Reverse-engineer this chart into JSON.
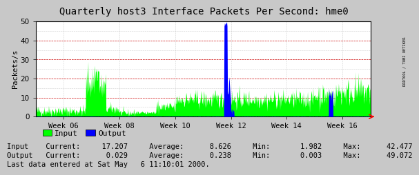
{
  "title": "Quarterly host3 Interface Packets Per Second: hme0",
  "ylabel": "Packets/s",
  "bg_color": "#c8c8c8",
  "plot_bg_color": "#ffffff",
  "ylim": [
    0,
    50
  ],
  "yticks": [
    0,
    10,
    20,
    30,
    40,
    50
  ],
  "week_labels": [
    "Week 06",
    "Week 08",
    "Week 10",
    "Week 12",
    "Week 14",
    "Week 16"
  ],
  "input_color": "#00ff00",
  "output_color": "#0000ff",
  "arrow_color": "#ff0000",
  "legend_input": "Input",
  "legend_output": "Output",
  "stats_line1": "Input    Current:     17.207     Average:      8.626     Min:       1.982     Max:      42.477",
  "stats_line2": "Output   Current:      0.029     Average:      0.238     Min:       0.003     Max:      49.072",
  "footer_text": "Last data entered at Sat May   6 11:10:01 2000.",
  "side_text": "RRDTOOL / TOBI OETIKER",
  "title_fontsize": 10,
  "axis_fontsize": 7.5,
  "legend_fontsize": 8,
  "stats_fontsize": 7.5,
  "n_points": 800
}
